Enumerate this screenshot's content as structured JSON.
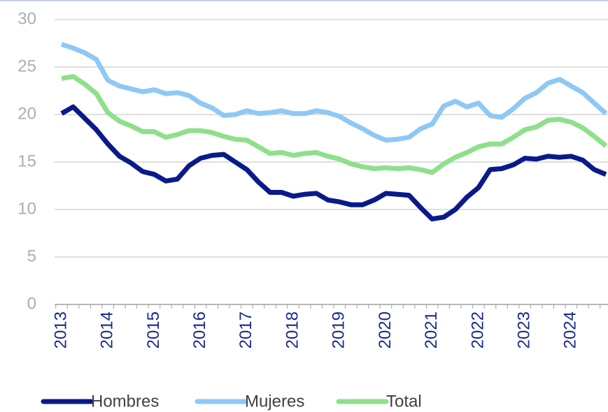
{
  "chart_data": {
    "type": "line",
    "categories": [
      "2013",
      null,
      null,
      null,
      "2014",
      null,
      null,
      null,
      "2015",
      null,
      null,
      null,
      "2016",
      null,
      null,
      null,
      "2017",
      null,
      null,
      null,
      "2018",
      null,
      null,
      null,
      "2019",
      null,
      null,
      null,
      "2020",
      null,
      null,
      null,
      "2021",
      null,
      null,
      null,
      "2022",
      null,
      null,
      null,
      "2023",
      null,
      null,
      null,
      "2024",
      null,
      null,
      null
    ],
    "series": [
      {
        "name": "Hombres",
        "color": "#0a1a8a",
        "values": [
          20.1,
          20.8,
          19.6,
          18.4,
          16.9,
          15.6,
          14.9,
          14.0,
          13.7,
          13.0,
          13.2,
          14.6,
          15.4,
          15.7,
          15.8,
          15.0,
          14.2,
          12.9,
          11.8,
          11.8,
          11.4,
          11.6,
          11.7,
          11.0,
          10.8,
          10.5,
          10.5,
          11.0,
          11.7,
          11.6,
          11.5,
          10.2,
          9.0,
          9.2,
          10.0,
          11.3,
          12.3,
          14.2,
          14.3,
          14.7,
          15.4,
          15.3,
          15.6,
          15.5,
          15.6,
          15.2,
          14.2,
          13.7
        ]
      },
      {
        "name": "Mujeres",
        "color": "#8fc8f5",
        "values": [
          27.4,
          27.0,
          26.5,
          25.8,
          23.6,
          23.0,
          22.7,
          22.4,
          22.6,
          22.2,
          22.3,
          22.0,
          21.2,
          20.7,
          19.9,
          20.0,
          20.4,
          20.1,
          20.2,
          20.4,
          20.1,
          20.1,
          20.4,
          20.2,
          19.8,
          19.1,
          18.5,
          17.8,
          17.3,
          17.4,
          17.6,
          18.5,
          19.0,
          20.9,
          21.4,
          20.8,
          21.2,
          19.9,
          19.7,
          20.6,
          21.7,
          22.3,
          23.3,
          23.7,
          23.0,
          22.3,
          21.2,
          20.1
        ]
      },
      {
        "name": "Total",
        "color": "#8ee08a",
        "values": [
          23.8,
          24.0,
          23.2,
          22.2,
          20.2,
          19.3,
          18.8,
          18.2,
          18.2,
          17.6,
          17.9,
          18.3,
          18.3,
          18.1,
          17.7,
          17.4,
          17.3,
          16.6,
          15.9,
          16.0,
          15.7,
          15.9,
          16.0,
          15.6,
          15.3,
          14.8,
          14.5,
          14.3,
          14.4,
          14.3,
          14.4,
          14.2,
          13.9,
          14.8,
          15.5,
          16.0,
          16.6,
          16.9,
          16.9,
          17.6,
          18.4,
          18.7,
          19.4,
          19.5,
          19.2,
          18.6,
          17.7,
          16.7
        ]
      }
    ],
    "ylim": [
      0,
      30
    ],
    "yticks": [
      0,
      5,
      10,
      15,
      20,
      25,
      30
    ],
    "grid": true
  }
}
